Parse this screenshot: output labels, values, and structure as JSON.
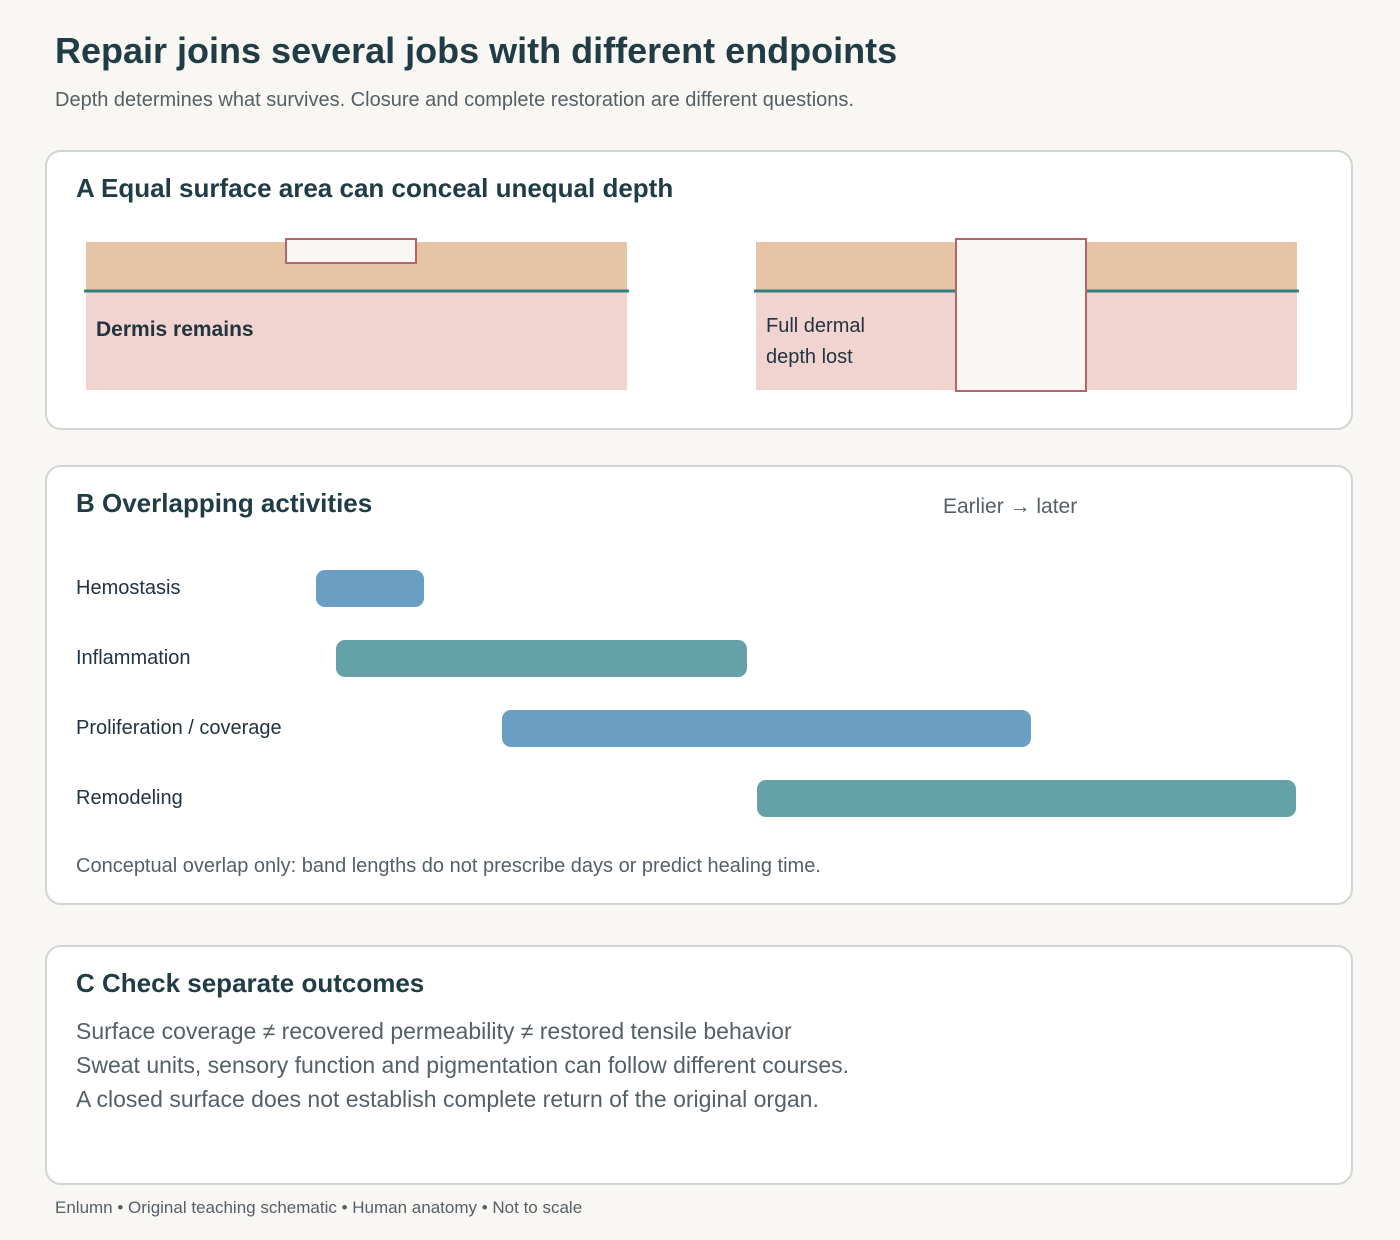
{
  "page": {
    "title": "Repair joins several jobs with different endpoints",
    "subtitle": "Depth determines what survives. Closure and complete restoration are different questions.",
    "footer": "Enlumn • Original teaching schematic • Human anatomy • Not to scale"
  },
  "panel_a": {
    "title": "A Equal surface area can conceal unequal depth",
    "left_label": "Dermis remains",
    "right_label_line1": "Full dermal",
    "right_label_line2": "depth lost"
  },
  "panel_b": {
    "title": "B Overlapping activities",
    "axis_note": "Earlier → later",
    "rows": [
      {
        "label": "Hemostasis",
        "start": 0.0,
        "end": 0.11,
        "color": "#6a9fc3"
      },
      {
        "label": "Inflammation",
        "start": 0.02,
        "end": 0.44,
        "color": "#64a2a8"
      },
      {
        "label": "Proliferation / coverage",
        "start": 0.19,
        "end": 0.73,
        "color": "#6a9fc3"
      },
      {
        "label": "Remodeling",
        "start": 0.45,
        "end": 1.0,
        "color": "#64a2a8"
      }
    ],
    "note": "Conceptual overlap only: band lengths do not prescribe days or predict healing time."
  },
  "panel_c": {
    "title": "C Check separate outcomes",
    "lines": [
      "Surface coverage ≠ recovered permeability ≠ restored tensile behavior",
      "Sweat units, sensory function and pigmentation can follow different courses.",
      "A closed surface does not establish complete return of the original organ."
    ]
  },
  "colors": {
    "epidermis": "#e6c4a6",
    "dermis": "#f1d4cf",
    "basement_line": "#2f8080",
    "wound_outline": "#b5646b",
    "wound_fill": "#f8f7f3"
  }
}
